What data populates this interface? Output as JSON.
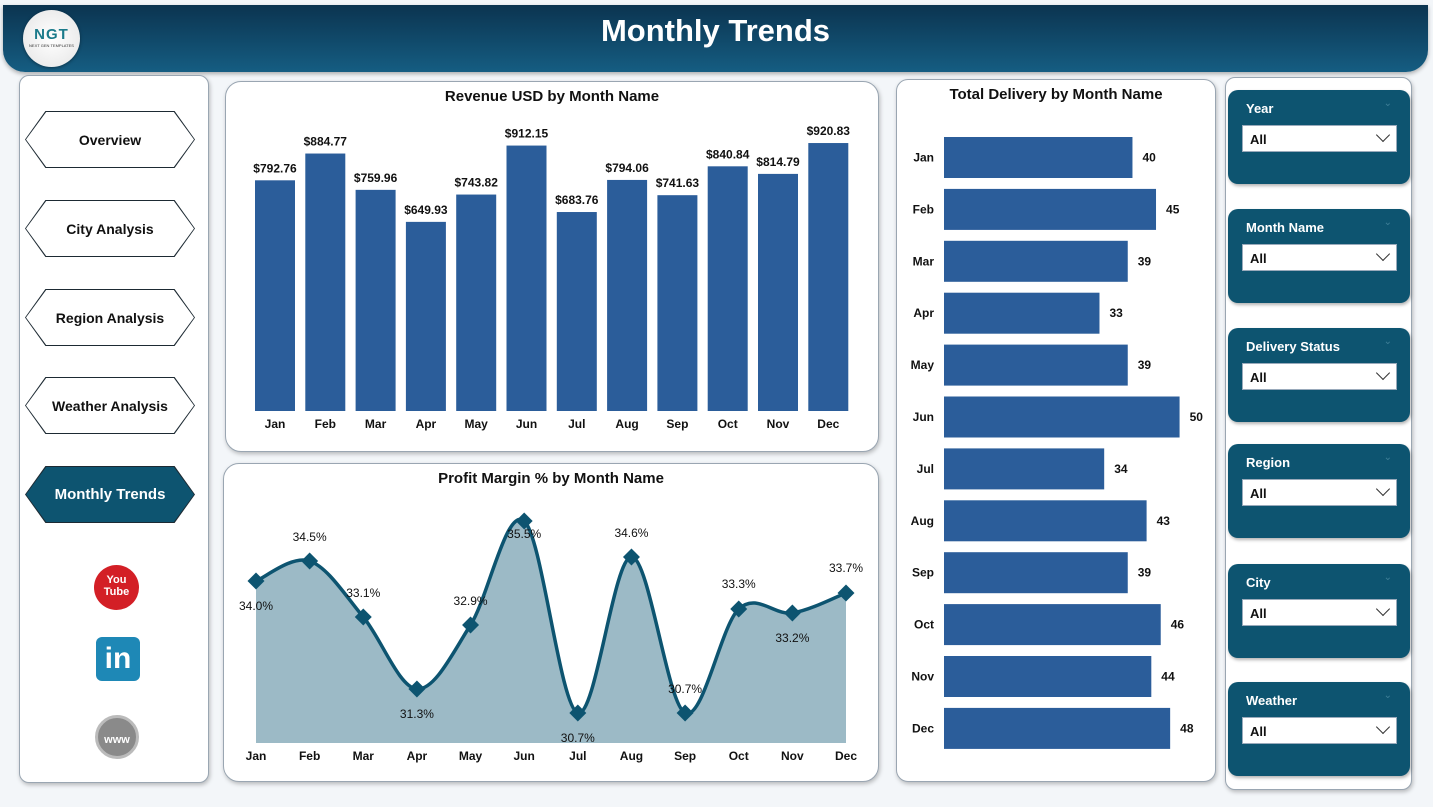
{
  "header": {
    "title": "Monthly Trends",
    "logo_text": "NGT",
    "logo_subtext": "NEXT GEN TEMPLATES"
  },
  "nav": [
    {
      "label": "Overview",
      "active": false
    },
    {
      "label": "City Analysis",
      "active": false
    },
    {
      "label": "Region Analysis",
      "active": false
    },
    {
      "label": "Weather Analysis",
      "active": false
    },
    {
      "label": "Monthly Trends",
      "active": true
    }
  ],
  "social": [
    {
      "icon": "youtube-icon",
      "text": "You Tube"
    },
    {
      "icon": "linkedin-icon",
      "text": "in"
    },
    {
      "icon": "globe-www-icon",
      "text": "www"
    }
  ],
  "filters": [
    {
      "label": "Year",
      "value": "All"
    },
    {
      "label": "Month Name",
      "value": "All"
    },
    {
      "label": "Delivery Status",
      "value": "All"
    },
    {
      "label": "Region",
      "value": "All"
    },
    {
      "label": "City",
      "value": "All"
    },
    {
      "label": "Weather",
      "value": "All"
    }
  ],
  "colors": {
    "header_dark": "#0b3450",
    "accent": "#0d5470",
    "bar": "#2b5d9a",
    "area": "#9cbac6",
    "line": "#0d5470"
  },
  "chart_data": [
    {
      "type": "bar",
      "title": "Revenue USD by Month Name",
      "categories": [
        "Jan",
        "Feb",
        "Mar",
        "Apr",
        "May",
        "Jun",
        "Jul",
        "Aug",
        "Sep",
        "Oct",
        "Nov",
        "Dec"
      ],
      "values": [
        792.76,
        884.77,
        759.96,
        649.93,
        743.82,
        912.15,
        683.76,
        794.06,
        741.63,
        840.84,
        814.79,
        920.83
      ],
      "labels": [
        "$792.76",
        "$884.77",
        "$759.96",
        "$649.93",
        "$743.82",
        "$912.15",
        "$683.76",
        "$794.06",
        "$741.63",
        "$840.84",
        "$814.79",
        "$920.83"
      ],
      "ylim": [
        0,
        1000
      ],
      "grid": false
    },
    {
      "type": "area",
      "title": "Profit Margin % by Month Name",
      "categories": [
        "Jan",
        "Feb",
        "Mar",
        "Apr",
        "May",
        "Jun",
        "Jul",
        "Aug",
        "Sep",
        "Oct",
        "Nov",
        "Dec"
      ],
      "values": [
        34.0,
        34.5,
        33.1,
        31.3,
        32.9,
        35.5,
        30.7,
        34.6,
        30.7,
        33.3,
        33.2,
        33.7
      ],
      "labels": [
        "34.0%",
        "34.5%",
        "33.1%",
        "31.3%",
        "32.9%",
        "35.5%",
        "30.7%",
        "34.6%",
        "30.7%",
        "33.3%",
        "33.2%",
        "33.7%"
      ],
      "ylim": [
        29.95,
        36
      ],
      "grid": false
    },
    {
      "type": "bar",
      "orientation": "horizontal",
      "title": "Total Delivery by Month Name",
      "categories": [
        "Jan",
        "Feb",
        "Mar",
        "Apr",
        "May",
        "Jun",
        "Jul",
        "Aug",
        "Sep",
        "Oct",
        "Nov",
        "Dec"
      ],
      "values": [
        40,
        45,
        39,
        33,
        39,
        50,
        34,
        43,
        39,
        46,
        44,
        48
      ],
      "xlim": [
        0,
        52
      ],
      "grid": false
    }
  ]
}
